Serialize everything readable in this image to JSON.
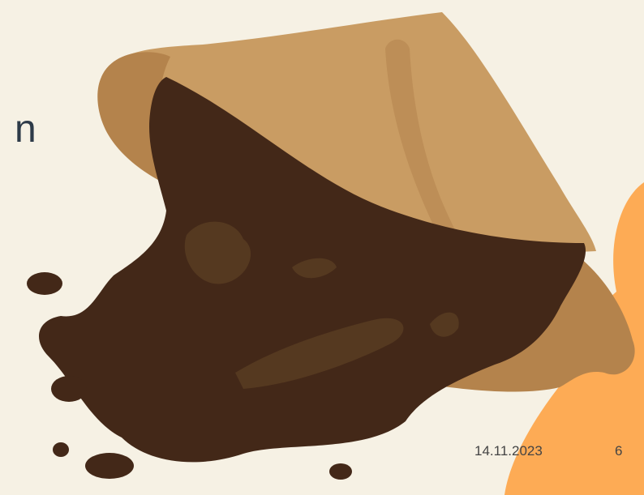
{
  "slide": {
    "title_fragment": "n",
    "date": "14.11.2023",
    "page_number": "6"
  }
}
